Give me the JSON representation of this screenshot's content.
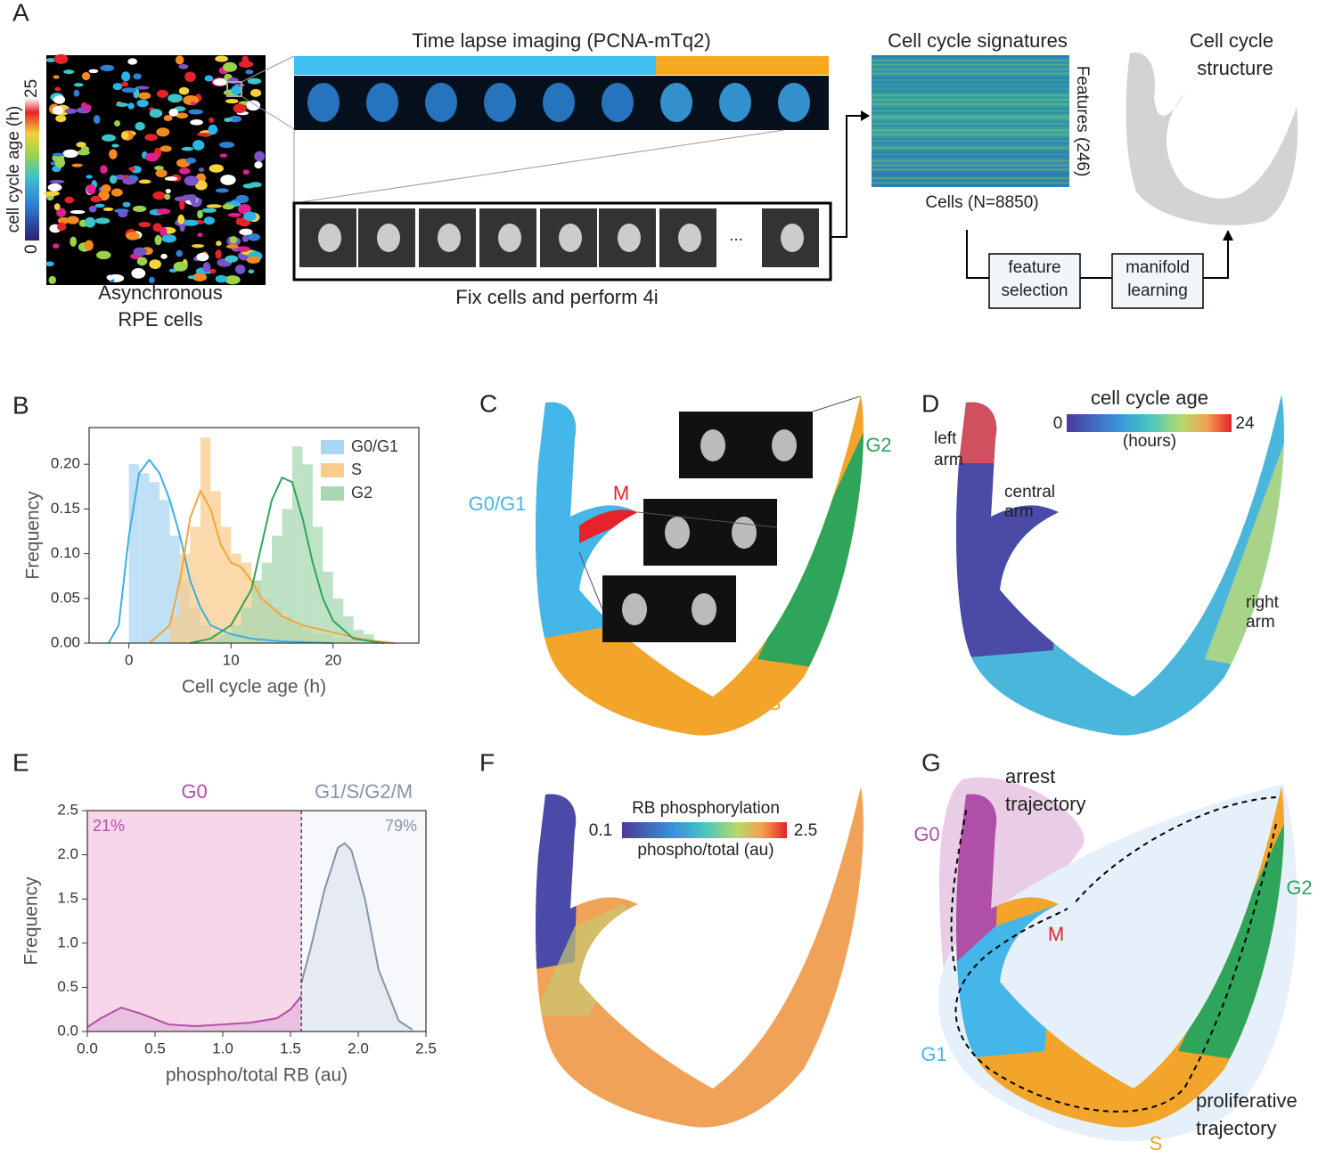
{
  "panels": {
    "A": {
      "label": "A",
      "colorbar_label": "cell cycle age (h)",
      "colorbar_ticks": [
        "0",
        "25"
      ],
      "image_caption": [
        "Asynchronous",
        "RPE cells"
      ],
      "timelapse_title": "Time lapse imaging (PCNA-mTq2)",
      "fix_caption": "Fix cells and perform 4i",
      "ellipsis": "...",
      "signatures_title": "Cell cycle signatures",
      "features": "Features (246)",
      "cells": "Cells (N=8850)",
      "structure_title": [
        "Cell cycle",
        "structure"
      ],
      "steps": [
        [
          "feature",
          "selection"
        ],
        [
          "manifold",
          "learning"
        ]
      ]
    },
    "C": {
      "label": "C",
      "annotations": [
        "G0/G1",
        "M",
        "G2",
        "S"
      ]
    },
    "D": {
      "label": "D",
      "colorbar_title": "cell cycle age",
      "colorbar_ticks": [
        "0",
        "24"
      ],
      "colorbar_unit": "(hours)",
      "arms": [
        [
          "left",
          "arm"
        ],
        [
          "central",
          "arm"
        ],
        [
          "right",
          "arm"
        ]
      ]
    },
    "F": {
      "label": "F",
      "colorbar_title": "RB phosphorylation",
      "colorbar_ticks": [
        "0.1",
        "2.5"
      ],
      "colorbar_unit": "phospho/total (au)"
    },
    "G": {
      "label": "G",
      "annotations": [
        "G0",
        "G1",
        "M",
        "G2",
        "S"
      ],
      "arrest": [
        "arrest",
        "trajectory"
      ],
      "proliferative": [
        "proliferative",
        "trajectory"
      ]
    }
  },
  "chart_data": [
    {
      "type": "histogram",
      "panel": "B",
      "xlabel": "Cell cycle age (h)",
      "ylabel": "Frequency",
      "xlim": [
        -3.9,
        28.4
      ],
      "ylim": [
        0,
        0.241
      ],
      "xticks": [
        0,
        10,
        20
      ],
      "yticks": [
        {
          "value": 0,
          "label": "0.00"
        },
        {
          "value": 0.05,
          "label": "0.05"
        },
        {
          "value": 0.1,
          "label": "0.10"
        },
        {
          "value": 0.15,
          "label": "0.15"
        },
        {
          "value": 0.2,
          "label": "0.20"
        }
      ],
      "legend_position": "upper right",
      "series": [
        {
          "name": "G0/G1",
          "color": "#a9d6f2",
          "line_color": "#3ab0e0",
          "bins": [
            0,
            1,
            2,
            3,
            4,
            5,
            6,
            7,
            8,
            9,
            10
          ],
          "values": [
            0.2,
            0.19,
            0.18,
            0.16,
            0.12,
            0.07,
            0.04,
            0.02,
            0.01,
            0.005
          ],
          "kde_x": [
            -2,
            -1,
            0,
            1,
            2,
            3,
            4,
            5,
            6,
            7,
            8,
            10,
            12,
            15,
            20
          ],
          "kde_y": [
            0,
            0.02,
            0.12,
            0.19,
            0.205,
            0.19,
            0.16,
            0.12,
            0.07,
            0.04,
            0.02,
            0.01,
            0.005,
            0.002,
            0
          ]
        },
        {
          "name": "S",
          "color": "#f9cc8e",
          "line_color": "#f2a53a",
          "bins": [
            4,
            5,
            6,
            7,
            8,
            9,
            10,
            11,
            12,
            13,
            14,
            15,
            16,
            17,
            18,
            19,
            20,
            21,
            22
          ],
          "values": [
            0.03,
            0.1,
            0.13,
            0.23,
            0.17,
            0.13,
            0.1,
            0.09,
            0.07,
            0.05,
            0.04,
            0.03,
            0.02,
            0.015,
            0.01,
            0.01,
            0.005,
            0.005
          ],
          "kde_x": [
            2,
            4,
            5,
            6,
            7,
            8,
            9,
            10,
            11,
            12,
            13,
            15,
            17,
            20,
            23,
            26
          ],
          "kde_y": [
            0,
            0.02,
            0.07,
            0.14,
            0.17,
            0.15,
            0.11,
            0.09,
            0.085,
            0.07,
            0.05,
            0.03,
            0.02,
            0.012,
            0.004,
            0
          ]
        },
        {
          "name": "G2",
          "color": "#a8d8b2",
          "line_color": "#2ea55a",
          "bins": [
            8,
            9,
            10,
            11,
            12,
            13,
            14,
            15,
            16,
            17,
            18,
            19,
            20,
            21,
            22,
            23,
            24
          ],
          "values": [
            0.005,
            0.01,
            0.02,
            0.04,
            0.07,
            0.09,
            0.12,
            0.15,
            0.22,
            0.2,
            0.13,
            0.08,
            0.05,
            0.03,
            0.015,
            0.01
          ],
          "kde_x": [
            6,
            8,
            10,
            12,
            13,
            14,
            15,
            16,
            17,
            18,
            19,
            20,
            22,
            25
          ],
          "kde_y": [
            0,
            0.005,
            0.02,
            0.06,
            0.11,
            0.16,
            0.185,
            0.18,
            0.14,
            0.09,
            0.05,
            0.025,
            0.005,
            0
          ]
        }
      ]
    },
    {
      "type": "line",
      "panel": "E",
      "xlabel": "phospho/total RB (au)",
      "ylabel": "Frequency",
      "xlim": [
        0,
        2.5
      ],
      "ylim": [
        0,
        2.5
      ],
      "xticks": [
        {
          "value": 0,
          "label": "0.0"
        },
        {
          "value": 0.5,
          "label": "0.5"
        },
        {
          "value": 1,
          "label": "1.0"
        },
        {
          "value": 1.5,
          "label": "1.5"
        },
        {
          "value": 2,
          "label": "2.0"
        },
        2.5
      ],
      "yticks": [
        {
          "value": 0,
          "label": "0.0"
        },
        {
          "value": 0.5,
          "label": "0.5"
        },
        {
          "value": 1,
          "label": "1.0"
        },
        {
          "value": 1.5,
          "label": "1.5"
        },
        {
          "value": 2,
          "label": "2.0"
        },
        2.5
      ],
      "threshold": 1.58,
      "regions": [
        {
          "name": "G0",
          "share": 21,
          "share_label": "21%",
          "color": "#b04fa8",
          "fill": "#f7d6ea"
        },
        {
          "name": "G1/S/G2/M",
          "share": 79,
          "share_label": "79%",
          "color": "#8494aa",
          "fill": "#f6f8fb"
        }
      ],
      "series": [
        {
          "color": "#b04fa8",
          "fill": "#e3b6da",
          "x": [
            0,
            0.1,
            0.25,
            0.4,
            0.6,
            0.8,
            1.0,
            1.2,
            1.4,
            1.5,
            1.58
          ],
          "values": [
            0.05,
            0.15,
            0.27,
            0.2,
            0.08,
            0.06,
            0.08,
            0.1,
            0.15,
            0.25,
            0.4
          ]
        },
        {
          "color": "#8494aa",
          "fill": "#dfe4ec",
          "x": [
            1.58,
            1.65,
            1.75,
            1.85,
            1.9,
            1.95,
            2.05,
            2.15,
            2.3,
            2.4
          ],
          "values": [
            0.55,
            0.95,
            1.6,
            2.08,
            2.13,
            2.05,
            1.5,
            0.7,
            0.12,
            0.02
          ]
        }
      ]
    }
  ]
}
